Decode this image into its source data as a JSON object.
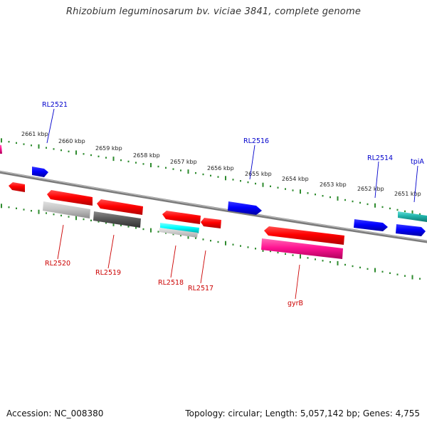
{
  "title": "Rhizobium leguminosarum bv. viciae 3841, complete genome",
  "footer": {
    "accession": "Accession: NC_008380",
    "summary": "Topology: circular; Length: 5,057,142 bp; Genes: 4,755"
  },
  "colors": {
    "backbone": "#808080",
    "tick": "#2e8b2e",
    "forward_label": "#0000cc",
    "reverse_label": "#cc0000"
  },
  "kbp_labels": [
    "2661 kbp",
    "2660 kbp",
    "2659 kbp",
    "2658 kbp",
    "2657 kbp",
    "2656 kbp",
    "2655 kbp",
    "2654 kbp",
    "2653 kbp",
    "2652 kbp",
    "2651 kbp"
  ],
  "gene_labels": {
    "forward": [
      "RL2521",
      "RL2516",
      "RL2514",
      "tpiA"
    ],
    "reverse": [
      "RL2520",
      "RL2519",
      "RL2518",
      "RL2517",
      "gyrB"
    ]
  },
  "feature_colors": {
    "cds": "#ff0000",
    "gene_forward": "#0000ff",
    "gene_partial": "#1010e0",
    "rrna_light": "#c0c0c0",
    "rrna_dark": "#606060",
    "trna": "#00ffff",
    "misc": "#ff1493",
    "teal": "#20b2aa"
  }
}
